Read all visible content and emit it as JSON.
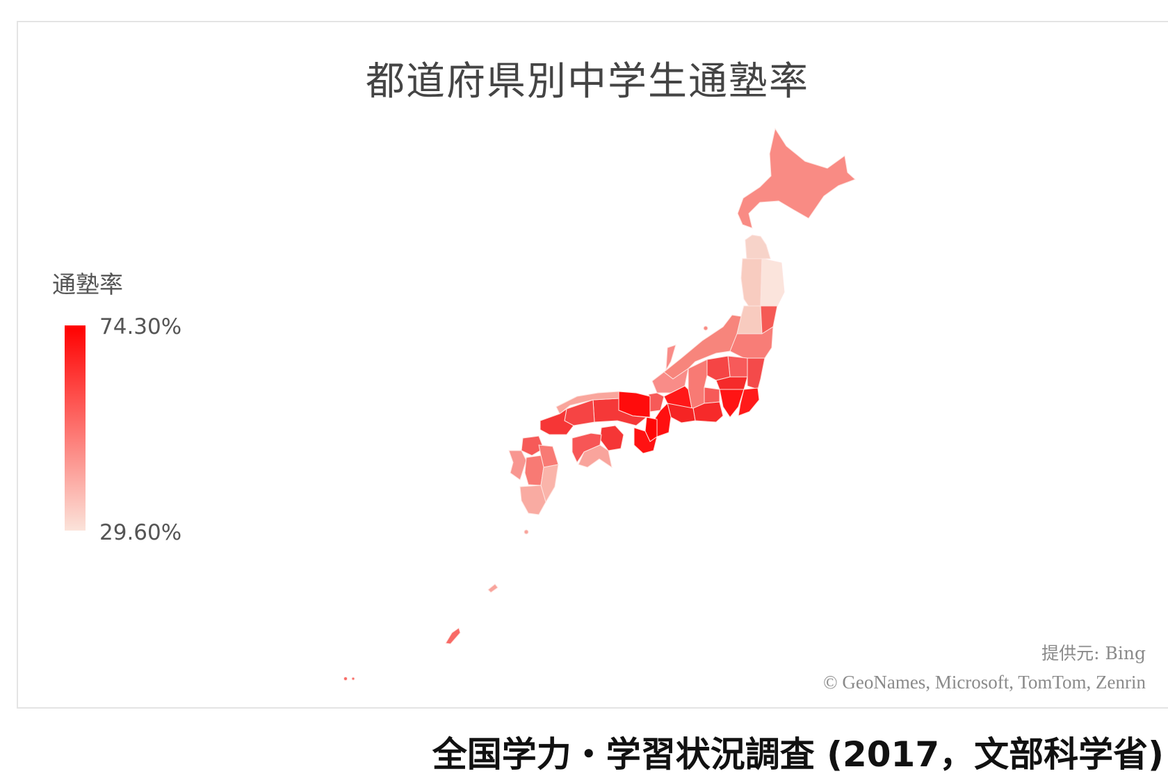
{
  "map": {
    "title": "都道府県別中学生通塾率",
    "legend": {
      "title": "通塾率",
      "max_label": "74.30%",
      "min_label": "29.60%",
      "max_color": "#ff0000",
      "min_color": "#fbe3da"
    },
    "attribution": {
      "provider": "提供元: Bing",
      "copyright": "© GeoNames, Microsoft, TomTom, Zenrin"
    },
    "region_colors": {
      "hokkaido": "#f98b84",
      "aomori": "#f7d3c9",
      "akita": "#f8ccc0",
      "iwate": "#fbe4dc",
      "yamagata": "#f8cbbf",
      "miyagi": "#f55a55",
      "fukushima": "#f87d77",
      "niigata": "#f7857c",
      "ibaraki": "#f44a4a",
      "tochigi": "#f75a5a",
      "gunma": "#f54545",
      "saitama": "#f52a2a",
      "tokyo-kanagawa": "#ff1414",
      "chiba": "#ff1a1a",
      "nagano": "#f87a74",
      "yamanashi": "#f65a58",
      "shizuoka": "#f62a2a",
      "gifu": "#ff1818",
      "hokuriku": "#f98c88",
      "aichi": "#f52424",
      "fukui": "#f65a58",
      "mie": "#ff1010",
      "nara": "#ff0606",
      "wakayama": "#ff1212",
      "kyoto": "#ff0c0c",
      "osaka-hyogo": "#f53838",
      "okayama": "#f64444",
      "sanin": "#f9a59c",
      "yamaguchi": "#f63636",
      "kagawa-tokushima": "#f53636",
      "ehime": "#f75656",
      "kochi": "#f9a49c",
      "fukuoka": "#f65a58",
      "oita": "#f87a74",
      "kumamoto": "#f87a74",
      "miyazaki": "#fab4aa",
      "kagoshima": "#f9aba2",
      "saga-nagasaki": "#f89690",
      "okinawa": "#f86a66",
      "amami": "#f8a49c"
    }
  },
  "caption": "全国学力・学習状況調査 (2017，文部科学省)"
}
